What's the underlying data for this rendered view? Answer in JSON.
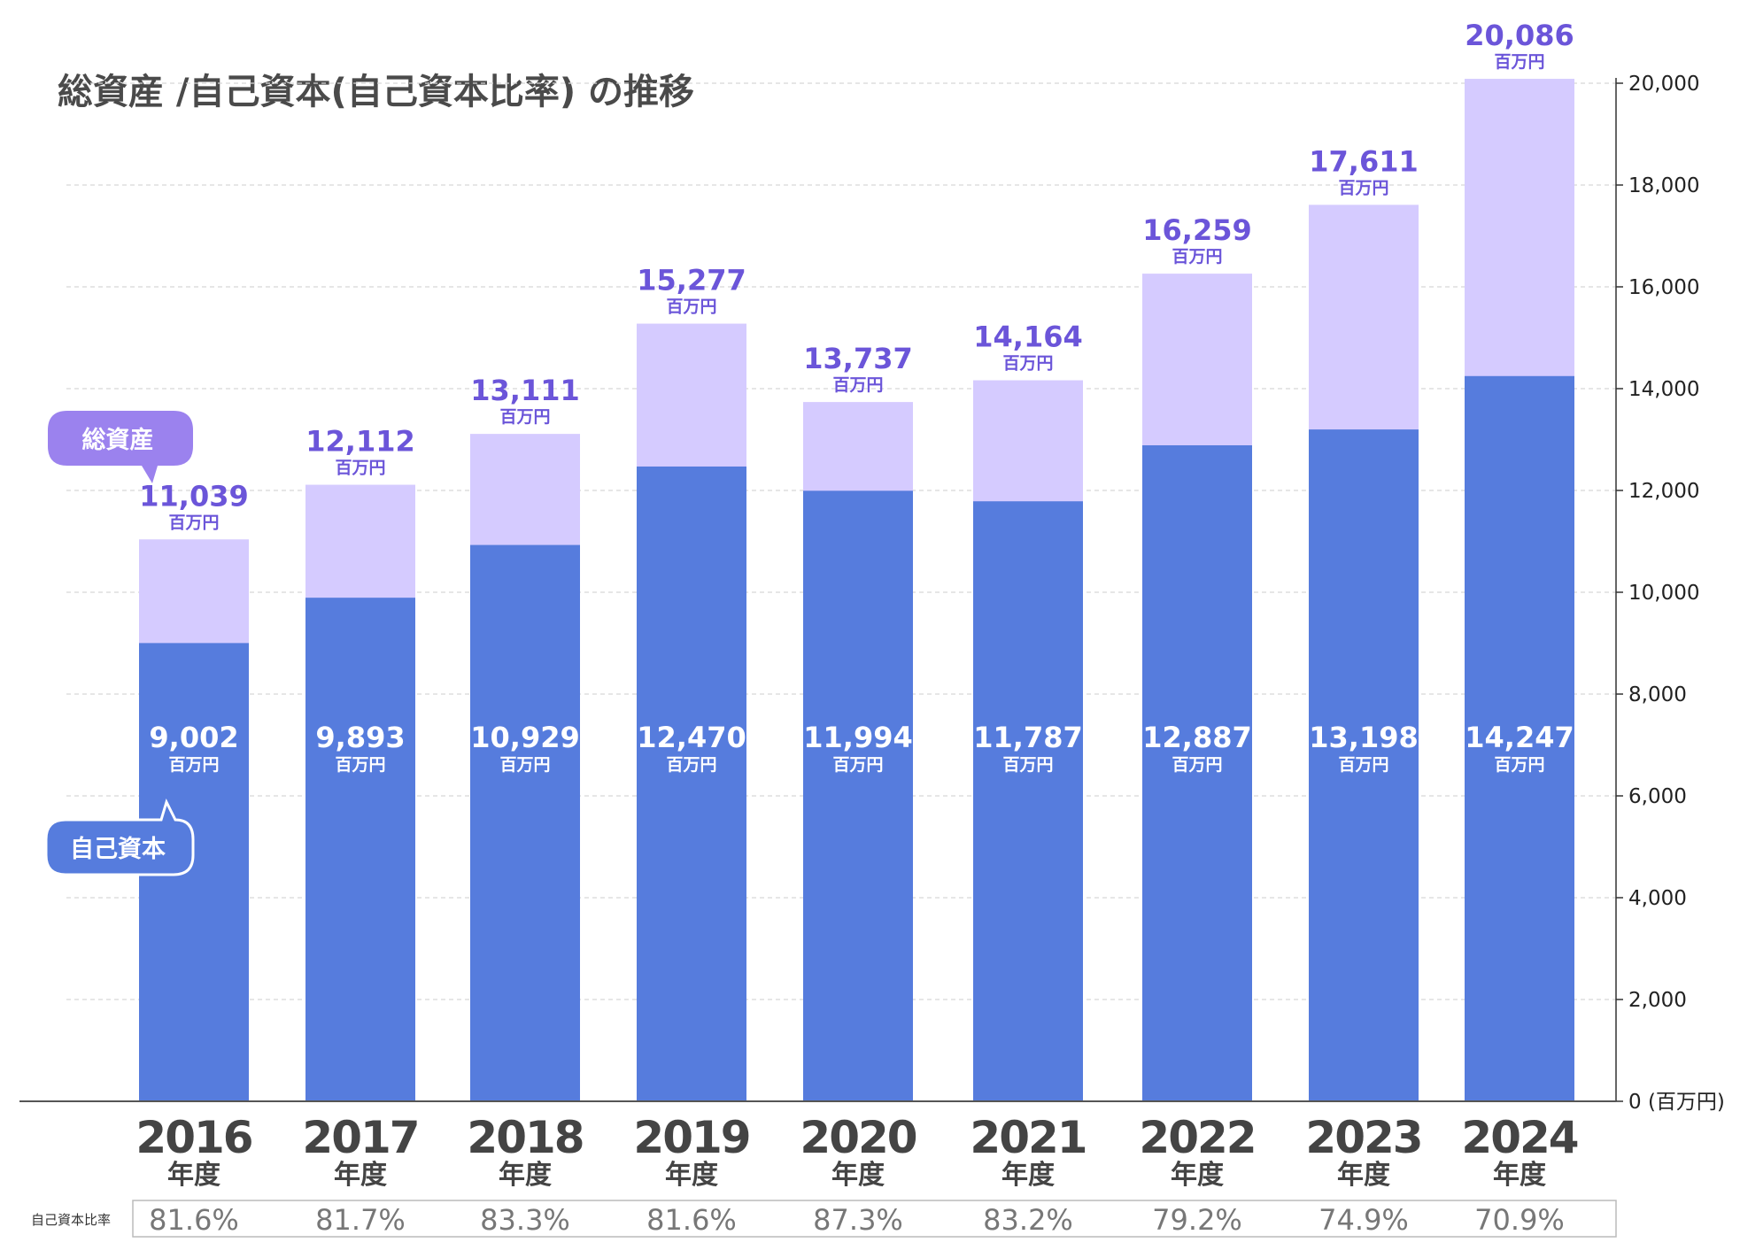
{
  "chart_data": {
    "type": "bar",
    "stacked": "overlay",
    "title": "総資産 /自己資本(自己資本比率) の推移",
    "categories": [
      "2016",
      "2017",
      "2018",
      "2019",
      "2020",
      "2021",
      "2022",
      "2023",
      "2024"
    ],
    "category_suffix": "年度",
    "series": [
      {
        "name": "総資産",
        "values": [
          11039,
          12112,
          13111,
          15277,
          13737,
          14164,
          16259,
          17611,
          20086
        ],
        "labels": [
          "11,039",
          "12,112",
          "13,111",
          "15,277",
          "13,737",
          "14,164",
          "16,259",
          "17,611",
          "20,086"
        ]
      },
      {
        "name": "自己資本",
        "values": [
          9002,
          9893,
          10929,
          12470,
          11994,
          11787,
          12887,
          13198,
          14247
        ],
        "labels": [
          "9,002",
          "9,893",
          "10,929",
          "12,470",
          "11,994",
          "11,787",
          "12,887",
          "13,198",
          "14,247"
        ]
      }
    ],
    "value_unit": "百万円",
    "ylim": [
      0,
      20000
    ],
    "y_ticks": [
      "0 (百万円)",
      "2,000",
      "4,000",
      "6,000",
      "8,000",
      "10,000",
      "12,000",
      "14,000",
      "16,000",
      "18,000",
      "20,000"
    ],
    "y_axis_position": "right",
    "grid": true,
    "ratio_row": {
      "label": "自己資本比率",
      "values": [
        "81.6%",
        "81.7%",
        "83.3%",
        "81.6%",
        "87.3%",
        "83.2%",
        "79.2%",
        "74.9%",
        "70.9%"
      ]
    },
    "colors": {
      "total": "#d5cbff",
      "equity": "#567cdd",
      "total_label": "#6b55d9",
      "total_callout": "#9b82ee",
      "equity_callout": "#567cdd"
    }
  }
}
